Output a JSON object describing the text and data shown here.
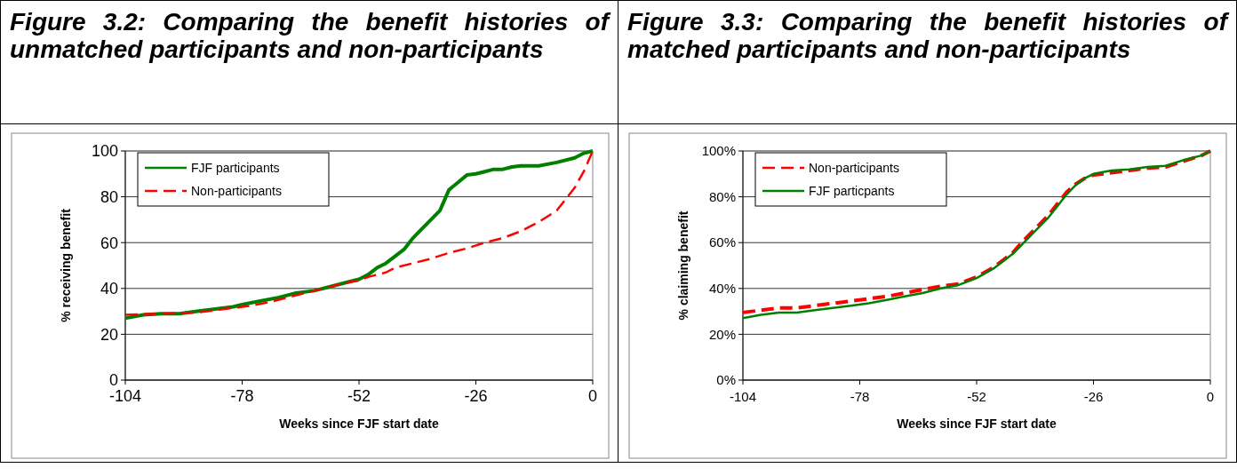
{
  "chart_data": [
    {
      "type": "line",
      "title": "Figure 3.2: Comparing the benefit histories of unmatched participants and non-participants",
      "xlabel": "Weeks since FJF start date",
      "ylabel": "% receiving benefit",
      "xlim": [
        -104,
        0
      ],
      "xticks": [
        -104,
        -78,
        -52,
        -26,
        0
      ],
      "ylim": [
        0,
        100
      ],
      "yticks": [
        0,
        20,
        40,
        60,
        80,
        100
      ],
      "grid": "y",
      "legend": "top left",
      "series": [
        {
          "name": "FJF participants",
          "color": "#008000",
          "line_style": "solid",
          "x": [
            -104,
            -100,
            -96,
            -92,
            -88,
            -84,
            -80,
            -78,
            -74,
            -70,
            -66,
            -62,
            -58,
            -54,
            -52,
            -50,
            -48,
            -46,
            -44,
            -42,
            -40,
            -38,
            -36,
            -34,
            -32,
            -28,
            -26,
            -24,
            -22,
            -20,
            -18,
            -16,
            -12,
            -8,
            -4,
            -2,
            0
          ],
          "values": [
            27,
            28.5,
            29,
            29,
            30,
            31,
            32,
            33,
            34.5,
            36,
            38,
            39,
            41,
            43,
            44,
            46,
            49,
            51,
            54,
            57,
            62,
            66,
            70,
            74,
            83,
            89.5,
            90,
            91,
            92,
            92,
            93,
            93.5,
            93.5,
            95,
            97,
            99,
            100
          ]
        },
        {
          "name": "Non-participants",
          "color": "#ff0000",
          "line_style": "dashed",
          "x": [
            -104,
            -96,
            -88,
            -80,
            -76,
            -72,
            -68,
            -64,
            -60,
            -56,
            -52,
            -50,
            -46,
            -44,
            -40,
            -36,
            -32,
            -28,
            -24,
            -20,
            -16,
            -12,
            -8,
            -6,
            -4,
            -2,
            0
          ],
          "values": [
            28.5,
            29,
            29.5,
            31.5,
            32.5,
            34,
            36,
            38,
            40,
            42,
            43.5,
            45,
            47,
            49,
            51,
            53,
            55.5,
            57.5,
            60,
            62,
            65,
            69,
            74,
            79,
            84,
            91,
            100
          ]
        }
      ]
    },
    {
      "type": "line",
      "title": "Figure 3.3: Comparing the benefit histories of matched participants and non-participants",
      "xlabel": "Weeks since FJF start date",
      "ylabel": "% claiming benefit",
      "xlim": [
        -104,
        0
      ],
      "xticks": [
        -104,
        -78,
        -52,
        -26,
        0
      ],
      "ylim": [
        0,
        100
      ],
      "yticks": [
        {
          "value": 0,
          "label": "0%"
        },
        {
          "value": 20,
          "label": "20%"
        },
        {
          "value": 40,
          "label": "40%"
        },
        {
          "value": 60,
          "label": "60%"
        },
        {
          "value": 80,
          "label": "80%"
        },
        {
          "value": 100,
          "label": "100%"
        }
      ],
      "grid": "y",
      "legend": "top left",
      "series": [
        {
          "name": "Non-participants",
          "color": "#ff0000",
          "line_style": "dashed",
          "x": [
            -104,
            -100,
            -96,
            -92,
            -88,
            -84,
            -80,
            -76,
            -72,
            -68,
            -64,
            -60,
            -56,
            -52,
            -48,
            -46,
            -44,
            -42,
            -40,
            -38,
            -36,
            -34,
            -32,
            -30,
            -28,
            -26,
            -22,
            -18,
            -14,
            -10,
            -6,
            -2,
            0
          ],
          "values": [
            29.5,
            30.5,
            31.5,
            31.5,
            32.5,
            33.5,
            34.5,
            35.5,
            36.5,
            38,
            39.5,
            41,
            42,
            45,
            49.5,
            52.5,
            55.5,
            60,
            64,
            68,
            72,
            77,
            82,
            85.5,
            88,
            89.5,
            90.5,
            91.5,
            92.5,
            93,
            95.5,
            98,
            100
          ]
        },
        {
          "name": "FJF particpants",
          "color": "#008000",
          "line_style": "solid",
          "x": [
            -104,
            -100,
            -96,
            -92,
            -88,
            -84,
            -80,
            -76,
            -72,
            -68,
            -64,
            -60,
            -56,
            -52,
            -48,
            -46,
            -44,
            -42,
            -40,
            -38,
            -36,
            -34,
            -32,
            -30,
            -28,
            -26,
            -22,
            -18,
            -14,
            -10,
            -6,
            -2,
            0
          ],
          "values": [
            27,
            28.5,
            29.5,
            29.5,
            30.5,
            31.5,
            32.5,
            33.5,
            35,
            36.5,
            38,
            40,
            41.5,
            44.5,
            49,
            52,
            55,
            59,
            63,
            67,
            71,
            76,
            81,
            85,
            88,
            90,
            91.5,
            92,
            93,
            93.5,
            96,
            98,
            100
          ]
        }
      ]
    }
  ]
}
